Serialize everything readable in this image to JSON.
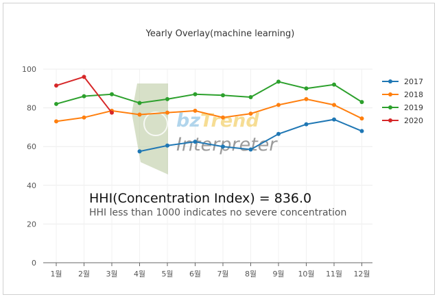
{
  "chart_data": {
    "type": "line",
    "title": "Yearly Overlay(machine learning)",
    "categories": [
      "1월",
      "2월",
      "3월",
      "4월",
      "5월",
      "6월",
      "7월",
      "8월",
      "9월",
      "10월",
      "11월",
      "12월"
    ],
    "ylim": [
      0,
      100
    ],
    "yticks": [
      0,
      20,
      40,
      60,
      80,
      100
    ],
    "grid": true,
    "legend_position": "right",
    "series": [
      {
        "name": "2017",
        "color": "#1f77b4",
        "values": [
          null,
          null,
          null,
          57.5,
          60.5,
          62.5,
          60,
          58.5,
          66.5,
          71.5,
          74,
          68
        ]
      },
      {
        "name": "2018",
        "color": "#ff7f0e",
        "values": [
          73,
          75,
          78.5,
          76.5,
          77.5,
          78.5,
          75,
          77,
          81.5,
          84.5,
          81.5,
          74.5
        ]
      },
      {
        "name": "2019",
        "color": "#2ca02c",
        "values": [
          82,
          86,
          87,
          82.5,
          84.5,
          87,
          86.5,
          85.5,
          93.5,
          90,
          92,
          83
        ]
      },
      {
        "name": "2020",
        "color": "#d62728",
        "values": [
          91.5,
          96,
          77.5,
          null,
          null,
          null,
          null,
          null,
          null,
          null,
          null,
          null
        ]
      }
    ],
    "annotations": {
      "hhi_main": "HHI(Concentration Index) = 836.0",
      "hhi_sub": "HHI less than 1000 indicates no severe concentration"
    }
  },
  "watermark": {
    "brand_part1": "bz",
    "brand_part2": "Trend",
    "brand_sub": "Interpreter"
  }
}
